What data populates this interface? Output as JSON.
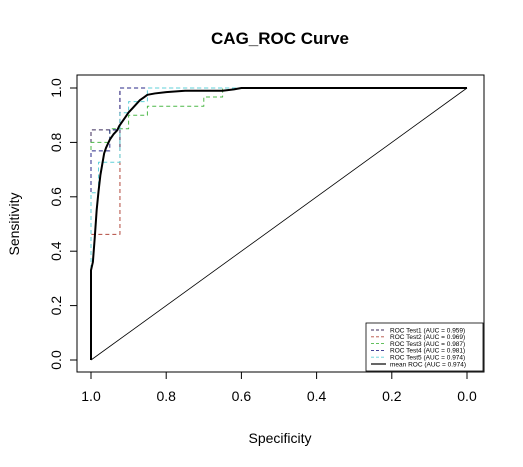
{
  "chart_data": {
    "type": "line",
    "title": "CAG_ROC Curve",
    "xlabel": "Specificity",
    "ylabel": "Sensitivity",
    "xlim": [
      1.0,
      0.0
    ],
    "ylim": [
      0.0,
      1.0
    ],
    "x_ticks": [
      1.0,
      0.8,
      0.6,
      0.4,
      0.2,
      0.0
    ],
    "x_tick_labels": [
      "1.0",
      "0.8",
      "0.6",
      "0.4",
      "0.2",
      "0.0"
    ],
    "y_ticks": [
      0.0,
      0.2,
      0.4,
      0.6,
      0.8,
      1.0
    ],
    "y_tick_labels": [
      "0.0",
      "0.2",
      "0.4",
      "0.6",
      "0.8",
      "1.0"
    ],
    "grid": false,
    "legend_position": "bottom-right",
    "series": [
      {
        "name": "ROC Test1 (AUC = 0.959)",
        "color": "#3b2a5a",
        "dash": "dashed",
        "x": [
          1.0,
          1.0,
          0.923,
          0.923,
          0.923,
          0.0
        ],
        "y": [
          0.0,
          0.846,
          0.846,
          0.769,
          1.0,
          1.0
        ]
      },
      {
        "name": "ROC Test2 (AUC = 0.969)",
        "color": "#b34a3e",
        "dash": "dashed",
        "x": [
          1.0,
          1.0,
          0.923,
          0.923,
          0.923,
          0.0
        ],
        "y": [
          0.0,
          0.462,
          0.462,
          0.923,
          1.0,
          1.0
        ]
      },
      {
        "name": "ROC Test3 (AUC = 0.987)",
        "color": "#4db848",
        "dash": "dashed",
        "x": [
          1.0,
          1.0,
          0.95,
          0.95,
          0.9,
          0.9,
          0.85,
          0.85,
          0.7,
          0.7,
          0.65,
          0.65,
          0.0
        ],
        "y": [
          0.0,
          0.8,
          0.8,
          0.85,
          0.85,
          0.9,
          0.9,
          0.933,
          0.933,
          0.967,
          0.967,
          1.0,
          1.0
        ]
      },
      {
        "name": "ROC Test4 (AUC = 0.981)",
        "color": "#2a2a8a",
        "dash": "dashed",
        "x": [
          1.0,
          1.0,
          0.95,
          0.95,
          0.923,
          0.923,
          0.0
        ],
        "y": [
          0.0,
          0.769,
          0.769,
          0.846,
          0.846,
          1.0,
          1.0
        ]
      },
      {
        "name": "ROC Test5 (AUC = 0.974)",
        "color": "#5fd0d8",
        "dash": "dashed",
        "x": [
          1.0,
          1.0,
          0.98,
          0.98,
          0.923,
          0.923,
          0.9,
          0.9,
          0.85,
          0.85,
          0.0
        ],
        "y": [
          0.0,
          0.615,
          0.615,
          0.727,
          0.727,
          0.909,
          0.909,
          0.95,
          0.95,
          1.0,
          1.0
        ]
      },
      {
        "name": "mean ROC (AUC = 0.974)",
        "color": "#000000",
        "dash": "solid",
        "x": [
          1.0,
          1.0,
          0.995,
          0.99,
          0.985,
          0.98,
          0.975,
          0.97,
          0.965,
          0.96,
          0.95,
          0.94,
          0.93,
          0.925,
          0.92,
          0.91,
          0.9,
          0.89,
          0.88,
          0.87,
          0.86,
          0.85,
          0.83,
          0.8,
          0.75,
          0.7,
          0.65,
          0.62,
          0.6,
          0.55,
          0.0
        ],
        "y": [
          0.0,
          0.33,
          0.36,
          0.45,
          0.55,
          0.62,
          0.68,
          0.72,
          0.76,
          0.78,
          0.81,
          0.83,
          0.845,
          0.86,
          0.87,
          0.89,
          0.91,
          0.925,
          0.94,
          0.955,
          0.965,
          0.975,
          0.98,
          0.985,
          0.99,
          0.99,
          0.99,
          0.995,
          1.0,
          1.0,
          1.0
        ]
      }
    ],
    "reference_line": {
      "x": [
        1.0,
        0.0
      ],
      "y": [
        0.0,
        1.0
      ],
      "color": "#000000"
    }
  }
}
